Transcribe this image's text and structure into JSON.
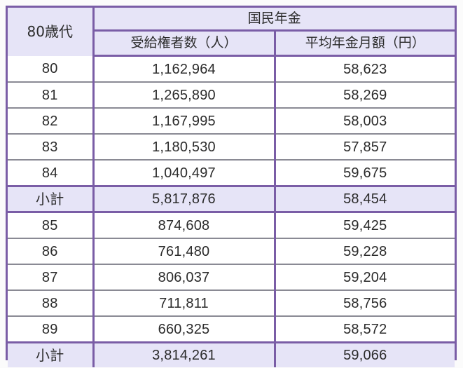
{
  "table": {
    "header": {
      "age_column": "80歳代",
      "group": "国民年金",
      "count_column": "受給権者数（人）",
      "amount_column": "平均年金月額（円）"
    },
    "rows": [
      {
        "age": "80",
        "count": "1,162,964",
        "amount": "58,623",
        "type": "data"
      },
      {
        "age": "81",
        "count": "1,265,890",
        "amount": "58,269",
        "type": "data"
      },
      {
        "age": "82",
        "count": "1,167,995",
        "amount": "58,003",
        "type": "data"
      },
      {
        "age": "83",
        "count": "1,180,530",
        "amount": "57,857",
        "type": "data"
      },
      {
        "age": "84",
        "count": "1,040,497",
        "amount": "59,675",
        "type": "data"
      },
      {
        "age": "小計",
        "count": "5,817,876",
        "amount": "58,454",
        "type": "subtotal"
      },
      {
        "age": "85",
        "count": "874,608",
        "amount": "59,425",
        "type": "data"
      },
      {
        "age": "86",
        "count": "761,480",
        "amount": "59,228",
        "type": "data"
      },
      {
        "age": "87",
        "count": "806,037",
        "amount": "59,204",
        "type": "data"
      },
      {
        "age": "88",
        "count": "711,811",
        "amount": "58,756",
        "type": "data"
      },
      {
        "age": "89",
        "count": "660,325",
        "amount": "58,572",
        "type": "data"
      },
      {
        "age": "小計",
        "count": "3,814,261",
        "amount": "59,066",
        "type": "subtotal"
      }
    ]
  },
  "colors": {
    "border": "#7a5da6",
    "header_fill": "#e6e4f7",
    "row_fill": "#ffffff",
    "row_divider": "#8a8a94",
    "text": "#2b2b2b"
  }
}
